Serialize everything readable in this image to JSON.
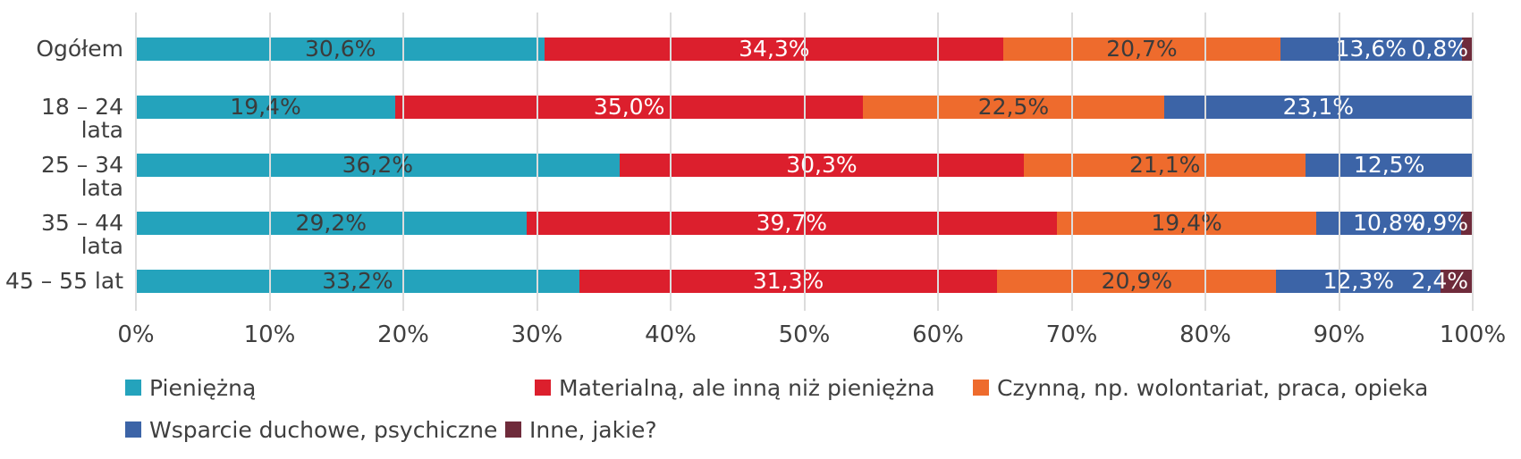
{
  "chart_data": {
    "type": "bar",
    "orientation": "horizontal",
    "stacked": true,
    "title": "",
    "categories": [
      "Ogółem",
      "18 – 24 lata",
      "25 – 34 lata",
      "35 – 44 lata",
      "45 – 55 lat"
    ],
    "series": [
      {
        "name": "Pieniężną",
        "color": "#24a3bc",
        "label_color": "#3b3b3b",
        "values": [
          30.6,
          19.4,
          36.2,
          29.2,
          33.2
        ],
        "labels": [
          "30,6%",
          "19,4%",
          "36,2%",
          "29,2%",
          "33,2%"
        ]
      },
      {
        "name": "Materialną, ale inną niż pieniężna",
        "color": "#dc1f2d",
        "label_color": "#ffffff",
        "values": [
          34.3,
          35.0,
          30.3,
          39.7,
          31.3
        ],
        "labels": [
          "34,3%",
          "35,0%",
          "30,3%",
          "39,7%",
          "31,3%"
        ]
      },
      {
        "name": "Czynną, np. wolontariat, praca, opieka",
        "color": "#ee6b2d",
        "label_color": "#3b3b3b",
        "values": [
          20.7,
          22.5,
          21.1,
          19.4,
          20.9
        ],
        "labels": [
          "20,7%",
          "22,5%",
          "21,1%",
          "19,4%",
          "20,9%"
        ]
      },
      {
        "name": "Wsparcie duchowe, psychiczne",
        "color": "#3c64a7",
        "label_color": "#ffffff",
        "values": [
          13.6,
          23.1,
          12.5,
          10.8,
          12.3
        ],
        "labels": [
          "13,6%",
          "23,1%",
          "12,5%",
          "10,8%",
          "12,3%"
        ]
      },
      {
        "name": "Inne, jakie?",
        "color": "#6f2b3b",
        "label_color": "#ffffff",
        "values": [
          0.8,
          0,
          0,
          0.9,
          2.4
        ],
        "labels": [
          "0,8%",
          null,
          null,
          "0,9%",
          "2,4%"
        ]
      }
    ],
    "x_ticks": [
      "0%",
      "10%",
      "20%",
      "30%",
      "40%",
      "50%",
      "60%",
      "70%",
      "80%",
      "90%",
      "100%"
    ],
    "xlim": [
      0,
      100
    ],
    "grid": true,
    "grid_color": "#dcdcdc",
    "text_color": "#3f3f3f",
    "background_color": "#ffffff",
    "legend_position": "bottom",
    "value_format": "comma-decimal-percent"
  }
}
